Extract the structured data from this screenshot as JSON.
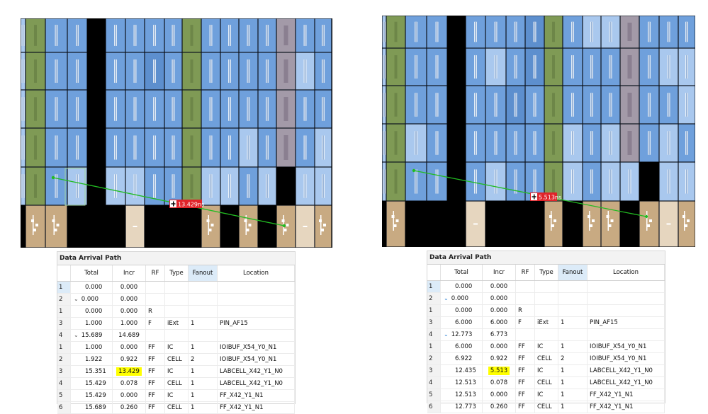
{
  "left": {
    "delay_label": "13.429ns",
    "table": {
      "title": "Data Arrival Path",
      "columns": [
        "",
        "Total",
        "Incr",
        "RF",
        "Type",
        "Fanout",
        "Location"
      ],
      "rows": [
        {
          "n": "1",
          "caret": "",
          "total": "0.000",
          "incr": "0.000",
          "rf": "",
          "type": "",
          "fanout": "",
          "loc": "",
          "hl": false
        },
        {
          "n": "2",
          "caret": "⌄",
          "total": "0.000",
          "incr": "0.000",
          "rf": "",
          "type": "",
          "fanout": "",
          "loc": "",
          "hl": false
        },
        {
          "n": "1",
          "caret": "",
          "total": "0.000",
          "incr": "0.000",
          "rf": "R",
          "type": "",
          "fanout": "",
          "loc": "",
          "hl": false
        },
        {
          "n": "3",
          "caret": "",
          "total": "1.000",
          "incr": "1.000",
          "rf": "F",
          "type": "iExt",
          "fanout": "1",
          "loc": "PIN_AF15",
          "hl": false
        },
        {
          "n": "4",
          "caret": "⌄",
          "total": "15.689",
          "incr": "14.689",
          "rf": "",
          "type": "",
          "fanout": "",
          "loc": "",
          "hl": false
        },
        {
          "n": "1",
          "caret": "",
          "total": "1.000",
          "incr": "0.000",
          "rf": "FF",
          "type": "IC",
          "fanout": "1",
          "loc": "IOIBUF_X54_Y0_N1",
          "hl": false
        },
        {
          "n": "2",
          "caret": "",
          "total": "1.922",
          "incr": "0.922",
          "rf": "FF",
          "type": "CELL",
          "fanout": "2",
          "loc": "IOIBUF_X54_Y0_N1",
          "hl": false
        },
        {
          "n": "3",
          "caret": "",
          "total": "15.351",
          "incr": "13.429",
          "rf": "FF",
          "type": "IC",
          "fanout": "1",
          "loc": "LABCELL_X42_Y1_N0",
          "hl": true
        },
        {
          "n": "4",
          "caret": "",
          "total": "15.429",
          "incr": "0.078",
          "rf": "FF",
          "type": "CELL",
          "fanout": "1",
          "loc": "LABCELL_X42_Y1_N0",
          "hl": false
        },
        {
          "n": "5",
          "caret": "",
          "total": "15.429",
          "incr": "0.000",
          "rf": "FF",
          "type": "IC",
          "fanout": "1",
          "loc": "FF_X42_Y1_N1",
          "hl": false
        },
        {
          "n": "6",
          "caret": "",
          "total": "15.689",
          "incr": "0.260",
          "rf": "FF",
          "type": "CELL",
          "fanout": "1",
          "loc": "FF_X42_Y1_N1",
          "hl": false
        }
      ]
    }
  },
  "right": {
    "delay_label": "5.513ns",
    "table": {
      "title": "Data Arrival Path",
      "columns": [
        "",
        "Total",
        "Incr",
        "RF",
        "Type",
        "Fanout",
        "Location"
      ],
      "rows": [
        {
          "n": "1",
          "caret": "",
          "total": "0.000",
          "incr": "0.000",
          "rf": "",
          "type": "",
          "fanout": "",
          "loc": "",
          "hl": false
        },
        {
          "n": "2",
          "caret": "⌄",
          "total": "0.000",
          "incr": "0.000",
          "rf": "",
          "type": "",
          "fanout": "",
          "loc": "",
          "hl": false
        },
        {
          "n": "1",
          "caret": "",
          "total": "0.000",
          "incr": "0.000",
          "rf": "R",
          "type": "",
          "fanout": "",
          "loc": "",
          "hl": false
        },
        {
          "n": "3",
          "caret": "",
          "total": "6.000",
          "incr": "6.000",
          "rf": "F",
          "type": "iExt",
          "fanout": "1",
          "loc": "PIN_AF15",
          "hl": false
        },
        {
          "n": "4",
          "caret": "⌄",
          "total": "12.773",
          "incr": "6.773",
          "rf": "",
          "type": "",
          "fanout": "",
          "loc": "",
          "hl": false
        },
        {
          "n": "1",
          "caret": "",
          "total": "6.000",
          "incr": "0.000",
          "rf": "FF",
          "type": "IC",
          "fanout": "1",
          "loc": "IOIBUF_X54_Y0_N1",
          "hl": false
        },
        {
          "n": "2",
          "caret": "",
          "total": "6.922",
          "incr": "0.922",
          "rf": "FF",
          "type": "CELL",
          "fanout": "2",
          "loc": "IOIBUF_X54_Y0_N1",
          "hl": false
        },
        {
          "n": "3",
          "caret": "",
          "total": "12.435",
          "incr": "5.513",
          "rf": "FF",
          "type": "IC",
          "fanout": "1",
          "loc": "LABCELL_X42_Y1_N0",
          "hl": true
        },
        {
          "n": "4",
          "caret": "",
          "total": "12.513",
          "incr": "0.078",
          "rf": "FF",
          "type": "CELL",
          "fanout": "1",
          "loc": "LABCELL_X42_Y1_N0",
          "hl": false
        },
        {
          "n": "5",
          "caret": "",
          "total": "12.513",
          "incr": "0.000",
          "rf": "FF",
          "type": "IC",
          "fanout": "1",
          "loc": "FF_X42_Y1_N1",
          "hl": false
        },
        {
          "n": "6",
          "caret": "",
          "total": "12.773",
          "incr": "0.260",
          "rf": "FF",
          "type": "CELL",
          "fanout": "1",
          "loc": "FF_X42_Y1_N1",
          "hl": false
        }
      ]
    }
  },
  "colors": {
    "lab_blue": "#6fa0dc",
    "lab_blue_light": "#a9c8ee",
    "lab_blue_dark": "#5d8fce",
    "dsp_green": "#7f9a55",
    "m20k_gray": "#a39aa8",
    "io_tan": "#c8aa82",
    "io_tan_light": "#e6d6bf",
    "path_green": "#22bb22",
    "delay_red": "#e0242a",
    "highlight_yellow": "#ffff00"
  }
}
